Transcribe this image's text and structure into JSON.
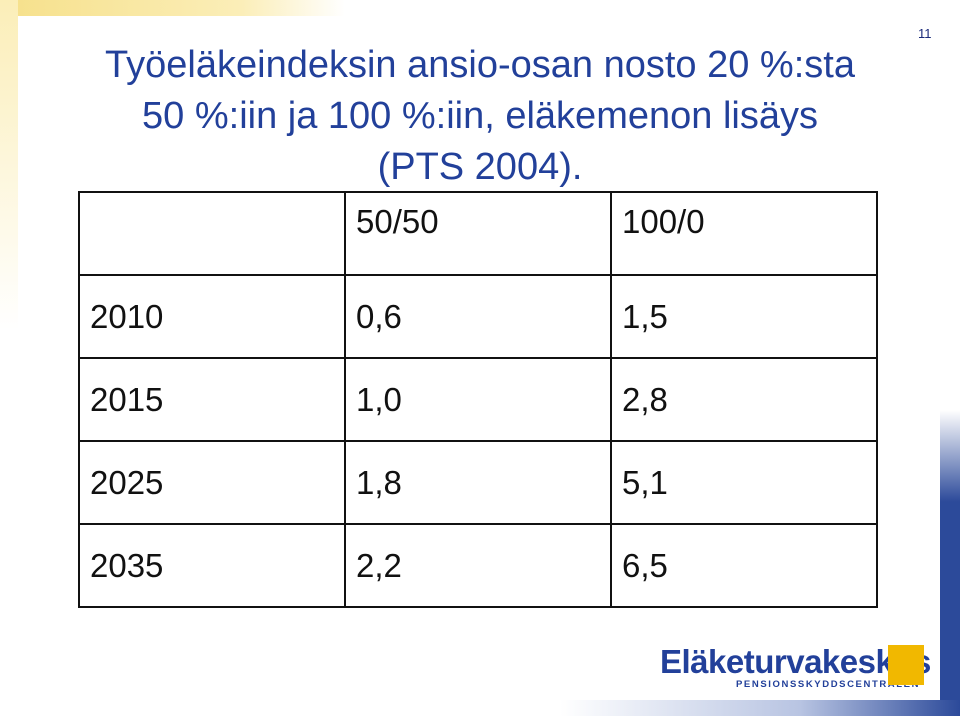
{
  "header": {
    "title": "Työeläkeindeksin ansio-osan nosto 20 %:sta 50 %:iin ja 100 %:iin, eläkemenon lisäys (PTS 2004).",
    "page_number": "11"
  },
  "table": {
    "columns": [
      "50/50",
      "100/0"
    ],
    "rows": [
      [
        "2010",
        "0,6",
        "1,5"
      ],
      [
        "2015",
        "1,0",
        "2,8"
      ],
      [
        "2025",
        "1,8",
        "5,1"
      ],
      [
        "2035",
        "2,2",
        "6,5"
      ]
    ]
  },
  "footer": {
    "logo": "Eläketurvakeskus",
    "logo_subtitle": "PENSIONSSKYDDSCENTRALEN"
  }
}
